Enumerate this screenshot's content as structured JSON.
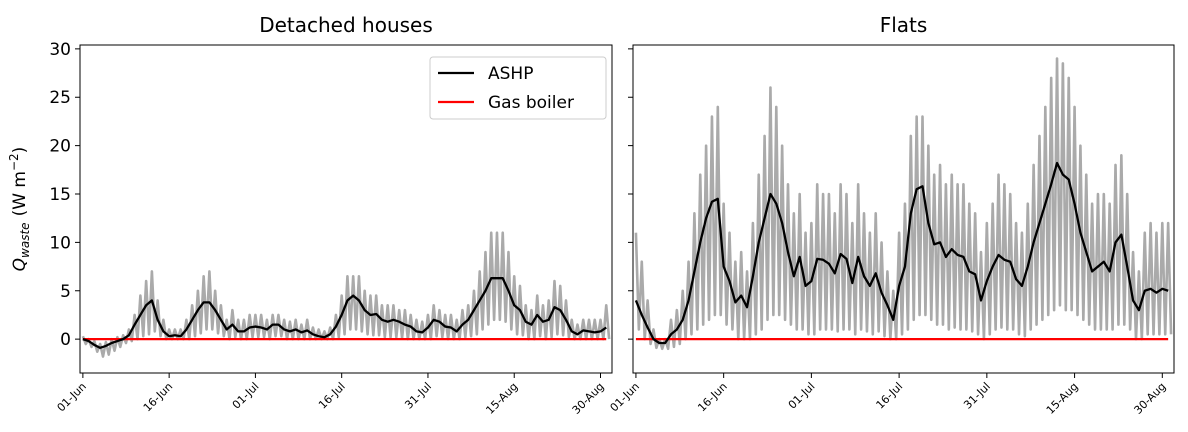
{
  "chart_data": [
    {
      "type": "line",
      "title": "Detached houses",
      "ylabel": {
        "main": "Q",
        "sub": "waste",
        "unit": "(W m",
        "sup": "−2",
        "close": ")"
      },
      "x": [
        0,
        1,
        2,
        3,
        4,
        5,
        6,
        7,
        8,
        9,
        10,
        11,
        12,
        13,
        14,
        15,
        16,
        17,
        18,
        19,
        20,
        21,
        22,
        23,
        24,
        25,
        26,
        27,
        28,
        29,
        30,
        31,
        32,
        33,
        34,
        35,
        36,
        37,
        38,
        39,
        40,
        41,
        42,
        43,
        44,
        45,
        46,
        47,
        48,
        49,
        50,
        51,
        52,
        53,
        54,
        55,
        56,
        57,
        58,
        59,
        60,
        61,
        62,
        63,
        64,
        65,
        66,
        67,
        68,
        69,
        70,
        71,
        72,
        73,
        74,
        75,
        76,
        77,
        78,
        79,
        80,
        81,
        82,
        83,
        84,
        85,
        86,
        87,
        88,
        89,
        90,
        91
      ],
      "xlim": [
        -0.5,
        92
      ],
      "ylim": [
        -3.5,
        30.4
      ],
      "xticks": [
        {
          "value": 0,
          "label": "01-Jun"
        },
        {
          "value": 15,
          "label": "16-Jun"
        },
        {
          "value": 30,
          "label": "01-Jul"
        },
        {
          "value": 45,
          "label": "16-Jul"
        },
        {
          "value": 60,
          "label": "31-Jul"
        },
        {
          "value": 75,
          "label": "15-Aug"
        },
        {
          "value": 90,
          "label": "30-Aug"
        }
      ],
      "yticks": [
        0,
        5,
        10,
        15,
        20,
        25,
        30
      ],
      "show_ytick_labels": true,
      "legend": "upper right",
      "envelope": {
        "color": "#aaaaaa",
        "high": [
          0.3,
          0,
          -0.2,
          -0.5,
          -0.3,
          0,
          0.2,
          0.4,
          1,
          2.5,
          4.5,
          6,
          7,
          4,
          2,
          1,
          1,
          1,
          2,
          3.5,
          5,
          6.5,
          7,
          5,
          3.5,
          2,
          3,
          2,
          2,
          2.5,
          2.5,
          2.5,
          2,
          2.5,
          2.5,
          2,
          1.8,
          2,
          1.5,
          2,
          1.2,
          1,
          0.8,
          1.2,
          2.5,
          4.5,
          6.5,
          6.5,
          6.5,
          5,
          4.5,
          4.5,
          3.5,
          3.5,
          3.5,
          3,
          3,
          2.5,
          2,
          1.8,
          2.5,
          3.5,
          3,
          2.5,
          2.5,
          2,
          3,
          3.5,
          5,
          7,
          9,
          11,
          11,
          11,
          9,
          6.5,
          5.5,
          3.5,
          3,
          4.5,
          3.5,
          4,
          6,
          5.5,
          4,
          2,
          1.5,
          2,
          2,
          2,
          2,
          3.5
        ],
        "low": [
          -0.5,
          -0.8,
          -1.3,
          -1.8,
          -1.6,
          -1.2,
          -0.8,
          -0.4,
          -0.2,
          0,
          0.3,
          0.5,
          0.8,
          0.3,
          0,
          0,
          0,
          0,
          0,
          0.3,
          0.6,
          1,
          1,
          0.6,
          0.3,
          0,
          0.2,
          0,
          0,
          0.2,
          0.2,
          0.2,
          0,
          0.3,
          0.3,
          0,
          0,
          0,
          0,
          0,
          0,
          0,
          0,
          0,
          0.2,
          0.5,
          1,
          1,
          0.8,
          0.5,
          0.4,
          0.4,
          0.2,
          0.2,
          0.2,
          0.1,
          0,
          0,
          0,
          0,
          0,
          0.3,
          0.2,
          0,
          0,
          0,
          0.2,
          0.3,
          0.5,
          1,
          1.5,
          2,
          2,
          1.8,
          1,
          0.5,
          0.4,
          0,
          0,
          0.3,
          0,
          0.2,
          0.5,
          0.4,
          0.2,
          0,
          0,
          0,
          0,
          0,
          0,
          0
        ]
      },
      "series": [
        {
          "name": "ASHP",
          "color": "#000000",
          "values": [
            0,
            -0.2,
            -0.6,
            -0.9,
            -0.7,
            -0.4,
            -0.2,
            0,
            0.4,
            1.5,
            2.5,
            3.5,
            4,
            2,
            0.8,
            0.3,
            0.4,
            0.3,
            1,
            2,
            3,
            3.8,
            3.8,
            3,
            2,
            1,
            1.5,
            0.8,
            0.8,
            1.2,
            1.3,
            1.2,
            1,
            1.5,
            1.5,
            1,
            0.8,
            1,
            0.7,
            0.9,
            0.5,
            0.3,
            0.2,
            0.5,
            1.3,
            2.5,
            4,
            4.5,
            4,
            3,
            2.5,
            2.6,
            2,
            1.8,
            2,
            1.8,
            1.5,
            1.3,
            0.8,
            0.7,
            1.2,
            2,
            1.8,
            1.3,
            1.2,
            0.8,
            1.5,
            2,
            3,
            4,
            5,
            6.3,
            6.3,
            6.3,
            5,
            3.5,
            3,
            1.8,
            1.5,
            2.5,
            1.8,
            2,
            3.3,
            3,
            2,
            0.8,
            0.5,
            0.9,
            0.8,
            0.7,
            0.8,
            1.2
          ]
        },
        {
          "name": "Gas boiler",
          "color": "#ff0000",
          "values": [
            0,
            0,
            0,
            0,
            0,
            0,
            0,
            0,
            0,
            0,
            0,
            0,
            0,
            0,
            0,
            0,
            0,
            0,
            0,
            0,
            0,
            0,
            0,
            0,
            0,
            0,
            0,
            0,
            0,
            0,
            0,
            0,
            0,
            0,
            0,
            0,
            0,
            0,
            0,
            0,
            0,
            0,
            0,
            0,
            0,
            0,
            0,
            0,
            0,
            0,
            0,
            0,
            0,
            0,
            0,
            0,
            0,
            0,
            0,
            0,
            0,
            0,
            0,
            0,
            0,
            0,
            0,
            0,
            0,
            0,
            0,
            0,
            0,
            0,
            0,
            0,
            0,
            0,
            0,
            0,
            0,
            0,
            0,
            0,
            0,
            0,
            0,
            0,
            0,
            0,
            0,
            0
          ]
        }
      ]
    },
    {
      "type": "line",
      "title": "Flats",
      "x": [
        0,
        1,
        2,
        3,
        4,
        5,
        6,
        7,
        8,
        9,
        10,
        11,
        12,
        13,
        14,
        15,
        16,
        17,
        18,
        19,
        20,
        21,
        22,
        23,
        24,
        25,
        26,
        27,
        28,
        29,
        30,
        31,
        32,
        33,
        34,
        35,
        36,
        37,
        38,
        39,
        40,
        41,
        42,
        43,
        44,
        45,
        46,
        47,
        48,
        49,
        50,
        51,
        52,
        53,
        54,
        55,
        56,
        57,
        58,
        59,
        60,
        61,
        62,
        63,
        64,
        65,
        66,
        67,
        68,
        69,
        70,
        71,
        72,
        73,
        74,
        75,
        76,
        77,
        78,
        79,
        80,
        81,
        82,
        83,
        84,
        85,
        86,
        87,
        88,
        89,
        90,
        91
      ],
      "xlim": [
        -0.5,
        92
      ],
      "ylim": [
        -3.5,
        30.4
      ],
      "xticks": [
        {
          "value": 0,
          "label": "01-Jun"
        },
        {
          "value": 15,
          "label": "16-Jun"
        },
        {
          "value": 30,
          "label": "01-Jul"
        },
        {
          "value": 45,
          "label": "16-Jul"
        },
        {
          "value": 60,
          "label": "31-Jul"
        },
        {
          "value": 75,
          "label": "15-Aug"
        },
        {
          "value": 90,
          "label": "30-Aug"
        }
      ],
      "yticks": [
        0,
        5,
        10,
        15,
        20,
        25,
        30
      ],
      "show_ytick_labels": false,
      "envelope": {
        "color": "#aaaaaa",
        "high": [
          11,
          8,
          4,
          1,
          0,
          0,
          2,
          3,
          5,
          8,
          13,
          17,
          20,
          23,
          24,
          14,
          11,
          8,
          9,
          7,
          12,
          17,
          21,
          26,
          24,
          20,
          16,
          13,
          15,
          11,
          12,
          16,
          15,
          15,
          13,
          16,
          15,
          12,
          16,
          13,
          11,
          13,
          10,
          7,
          5,
          11,
          14,
          21,
          23,
          23,
          20,
          17,
          18,
          16,
          17,
          16,
          16,
          14,
          13,
          9,
          12,
          14,
          17,
          16,
          15,
          12,
          11,
          14,
          18,
          21,
          24,
          27,
          29,
          28.5,
          27,
          24,
          20,
          17,
          14,
          15,
          15,
          14,
          18,
          19,
          15,
          9,
          7,
          11,
          12,
          11,
          12,
          12
        ],
        "low": [
          1,
          0,
          -0.5,
          -0.9,
          -1,
          -1,
          -0.8,
          -0.5,
          0,
          0.5,
          1,
          1.5,
          2,
          2.5,
          2.5,
          1.5,
          1,
          0,
          0,
          0,
          0.5,
          1,
          2,
          2.5,
          2.5,
          2,
          1.5,
          1,
          1,
          0.5,
          0.5,
          1,
          1,
          1,
          0.8,
          1,
          1,
          0.5,
          1,
          0.8,
          0.5,
          0.8,
          0.3,
          0,
          0,
          0.5,
          1,
          2,
          2.5,
          2.5,
          2,
          1.5,
          1.5,
          1,
          1.2,
          1,
          1,
          0.8,
          0.5,
          0,
          0.5,
          1,
          1.2,
          1,
          1,
          0.5,
          0.3,
          1,
          1.5,
          2,
          2.5,
          3,
          3.5,
          3,
          3,
          2.5,
          2,
          1.5,
          1,
          1,
          1,
          1,
          1.5,
          1.5,
          1,
          0,
          0,
          0.5,
          0.5,
          0.5,
          0.5,
          0.5
        ]
      },
      "series": [
        {
          "color": "#000000",
          "values": [
            4,
            2.5,
            1.2,
            0,
            -0.4,
            -0.4,
            0.5,
            1,
            2,
            4,
            7,
            10,
            12.5,
            14.2,
            14.5,
            7.5,
            6,
            3.8,
            4.5,
            3.3,
            6.5,
            10,
            12.5,
            15,
            14,
            12,
            9,
            6.5,
            8.5,
            5.5,
            6,
            8.3,
            8.2,
            7.8,
            6.8,
            8.8,
            8.3,
            5.8,
            8.5,
            6.5,
            5.5,
            6.8,
            4.8,
            3.5,
            2,
            5.5,
            7.5,
            13,
            15.5,
            15.8,
            12,
            9.8,
            10,
            8.5,
            9.3,
            8.7,
            8.5,
            7,
            6.7,
            4,
            6,
            7.5,
            8.7,
            8.2,
            8,
            6.2,
            5.5,
            7.5,
            10,
            12,
            14,
            16,
            18.2,
            17,
            16.5,
            14,
            11,
            9,
            7,
            7.5,
            8,
            7,
            10,
            10.8,
            7.5,
            4,
            3,
            5,
            5.2,
            4.8,
            5.2,
            5
          ]
        },
        {
          "color": "#ff0000",
          "values": [
            0,
            0,
            0,
            0,
            0,
            0,
            0,
            0,
            0,
            0,
            0,
            0,
            0,
            0,
            0,
            0,
            0,
            0,
            0,
            0,
            0,
            0,
            0,
            0,
            0,
            0,
            0,
            0,
            0,
            0,
            0,
            0,
            0,
            0,
            0,
            0,
            0,
            0,
            0,
            0,
            0,
            0,
            0,
            0,
            0,
            0,
            0,
            0,
            0,
            0,
            0,
            0,
            0,
            0,
            0,
            0,
            0,
            0,
            0,
            0,
            0,
            0,
            0,
            0,
            0,
            0,
            0,
            0,
            0,
            0,
            0,
            0,
            0,
            0,
            0,
            0,
            0,
            0,
            0,
            0,
            0,
            0,
            0,
            0,
            0,
            0,
            0,
            0,
            0,
            0,
            0,
            0
          ]
        }
      ]
    }
  ]
}
